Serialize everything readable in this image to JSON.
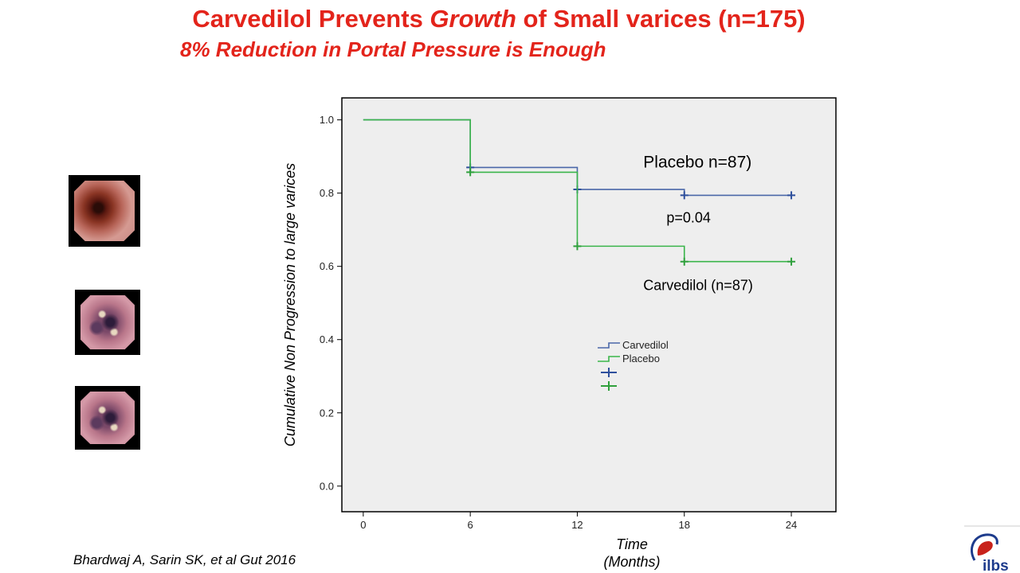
{
  "slide": {
    "title_parts": [
      "Carvedilol Prevents ",
      "Growth",
      " of Small varices (n=175)"
    ],
    "subtitle": "8% Reduction in Portal Pressure is Enough",
    "citation": "Bhardwaj A, Sarin SK, et al Gut 2016",
    "logo_text": "ilbs",
    "thumbnails": [
      "endoscopy-image-normal",
      "endoscopy-image-varices",
      "endoscopy-image-varices"
    ]
  },
  "chart_data": {
    "type": "line",
    "subtype": "kaplan-meier step",
    "ylabel": "Cumulative Non Progression to large varices",
    "xlabel_lines": [
      "Time",
      "(Months)"
    ],
    "xlim": [
      -1.2,
      26.5
    ],
    "ylim": [
      -0.07,
      1.06
    ],
    "x_ticks": [
      0,
      6,
      12,
      18,
      24
    ],
    "y_ticks": [
      0.0,
      0.2,
      0.4,
      0.6,
      0.8,
      1.0
    ],
    "y_tick_labels": [
      "0.0",
      "0.2",
      "0.4",
      "0.6",
      "0.8",
      "1.0"
    ],
    "series": [
      {
        "name": "Carvedilol",
        "color": "#4a67a8",
        "censor_color": "#2e4f9c",
        "steps": [
          [
            0,
            1.0
          ],
          [
            6,
            0.87
          ],
          [
            12,
            0.81
          ],
          [
            18,
            0.794
          ],
          [
            24,
            0.794
          ]
        ],
        "censored": [
          [
            6,
            0.87
          ],
          [
            12,
            0.81
          ],
          [
            18,
            0.794
          ],
          [
            24,
            0.794
          ]
        ]
      },
      {
        "name": "Placebo",
        "color": "#3ab54a",
        "censor_color": "#2fa03c",
        "steps": [
          [
            0,
            1.0
          ],
          [
            6,
            0.857
          ],
          [
            12,
            0.655
          ],
          [
            18,
            0.613
          ],
          [
            24,
            0.613
          ]
        ],
        "censored": [
          [
            6,
            0.857
          ],
          [
            12,
            0.655
          ],
          [
            18,
            0.613
          ],
          [
            24,
            0.613
          ]
        ]
      }
    ],
    "annotations": [
      {
        "text": "Placebo n=87)",
        "x": 15.7,
        "y": 0.87,
        "size": 21
      },
      {
        "text": "p=0.04",
        "x": 17,
        "y": 0.72,
        "size": 18
      },
      {
        "text": "Carvedilol (n=87)",
        "x": 15.7,
        "y": 0.535,
        "size": 18
      }
    ],
    "legend": {
      "position": "center",
      "items": [
        "Carvedilol",
        "Placebo"
      ]
    }
  }
}
